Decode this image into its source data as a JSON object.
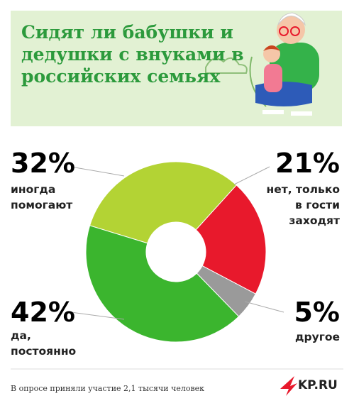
{
  "chart_data": {
    "type": "donut",
    "title": "Сидят ли бабушки и дедушки с внуками в российских семьях",
    "categories": [
      "иногда помогают",
      "нет, только в гости заходят",
      "другое",
      "да, постоянно"
    ],
    "values": [
      32,
      21,
      5,
      42
    ],
    "value_labels": [
      "32%",
      "21%",
      "5%",
      "42%"
    ],
    "colors": [
      "#b3d334",
      "#e8192c",
      "#9a9a9a",
      "#3bb52e"
    ],
    "note": "В опросе приняли участие 2,1 тысячи человек",
    "source": "KP.RU"
  }
}
